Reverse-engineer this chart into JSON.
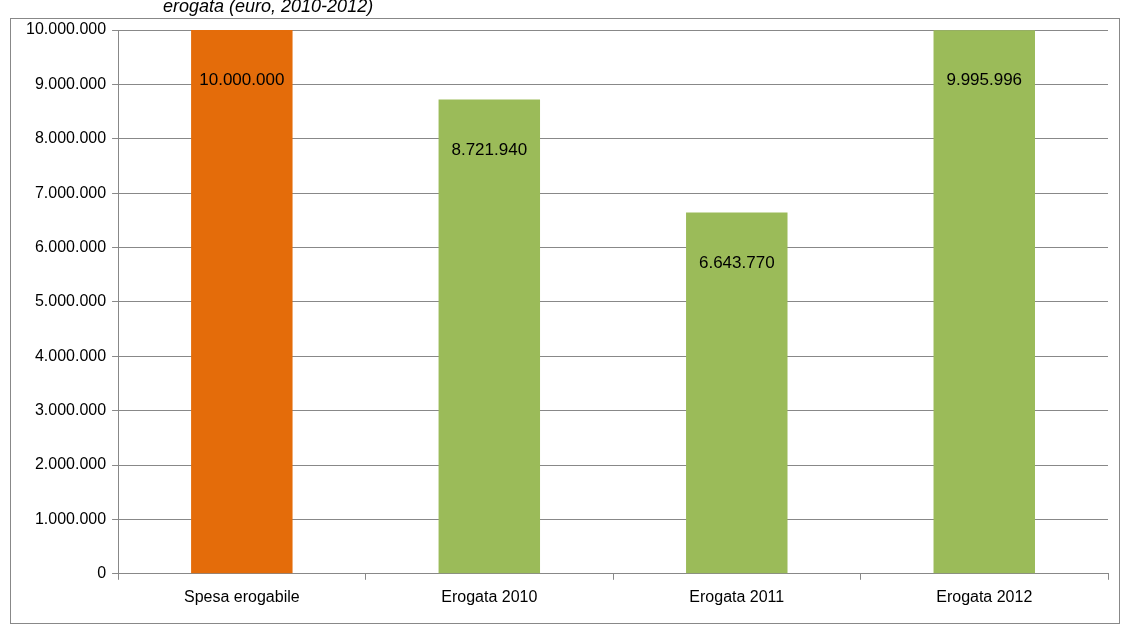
{
  "chart_data": {
    "type": "bar",
    "title": "erogata (euro, 2010-2012)",
    "categories": [
      "Spesa erogabile",
      "Erogata 2010",
      "Erogata 2011",
      "Erogata 2012"
    ],
    "values": [
      10000000,
      8721940,
      6643770,
      9995996
    ],
    "colors": [
      "#e46c0a",
      "#9bbb59",
      "#9bbb59",
      "#9bbb59"
    ],
    "value_labels": [
      "10.000.000",
      "8.721.940",
      "6.643.770",
      "9.995.996"
    ],
    "ylim": [
      0,
      10000000
    ],
    "yticks": [
      {
        "value": 0,
        "label": "0"
      },
      {
        "value": 1000000,
        "label": "1.000.000"
      },
      {
        "value": 2000000,
        "label": "2.000.000"
      },
      {
        "value": 3000000,
        "label": "3.000.000"
      },
      {
        "value": 4000000,
        "label": "4.000.000"
      },
      {
        "value": 5000000,
        "label": "5.000.000"
      },
      {
        "value": 6000000,
        "label": "6.000.000"
      },
      {
        "value": 7000000,
        "label": "7.000.000"
      },
      {
        "value": 8000000,
        "label": "8.000.000"
      },
      {
        "value": 9000000,
        "label": "9.000.000"
      },
      {
        "value": 10000000,
        "label": "10.000.000"
      }
    ],
    "grid": "y",
    "legend": false
  }
}
